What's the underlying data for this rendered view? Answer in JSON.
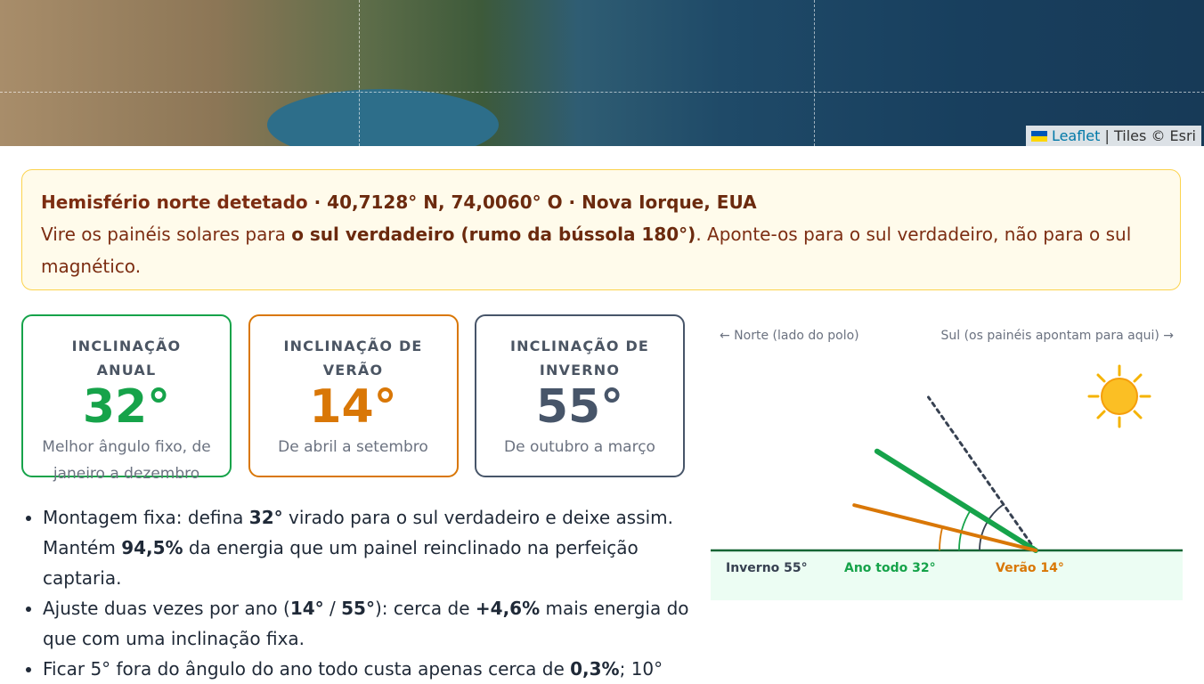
{
  "map": {
    "attribution": {
      "link": "Leaflet",
      "separator": "|",
      "tiles": "Tiles © Esri"
    }
  },
  "notice": {
    "line1": [
      "Hemisfério norte detetado",
      " · 40,7128° N, 74,0060° O · Nova Iorque, EUA"
    ],
    "line2": [
      "Vire os painéis solares para ",
      "o sul verdadeiro (rumo da bússola 180°)",
      ". Aponte-os para o sul verdadeiro, não para o sul magnético."
    ]
  },
  "cards": [
    {
      "title": "INCLINAÇÃO ANUAL",
      "value": "32°",
      "note": "Melhor ângulo fixo, de janeiro a dezembro",
      "color": "#16a34a"
    },
    {
      "title": "INCLINAÇÃO DE VERÃO",
      "value": "14°",
      "note": "De abril a setembro",
      "color": "#d97706"
    },
    {
      "title": "INCLINAÇÃO DE INVERNO",
      "value": "55°",
      "note": "De outubro a março",
      "color": "#475569"
    }
  ],
  "bullets": [
    [
      "Montagem fixa: defina ",
      "32°",
      " virado para o sul verdadeiro e deixe assim. Mantém ",
      "94,5%",
      " da energia que um painel reinclinado na perfeição captaria."
    ],
    [
      "Ajuste duas vezes por ano (",
      "14°",
      " / ",
      "55°",
      "): cerca de ",
      "+4,6%",
      " mais energia do que com uma inclinação fixa."
    ],
    [
      "Ficar 5° fora do ângulo do ano todo custa apenas cerca de ",
      "0,3%",
      "; 10°"
    ]
  ],
  "diagram": {
    "north": "← Norte (lado do polo)",
    "south": "Sul (os painéis apontam para aqui) →",
    "panels": [
      {
        "label": "Inverno 55°",
        "tilt": 55,
        "color": "#374151",
        "dashed": true
      },
      {
        "label": "Ano todo 32°",
        "tilt": 32,
        "color": "#16a34a",
        "dashed": false
      },
      {
        "label": "Verão 14°",
        "tilt": 14,
        "color": "#d97706",
        "dashed": false
      }
    ]
  }
}
